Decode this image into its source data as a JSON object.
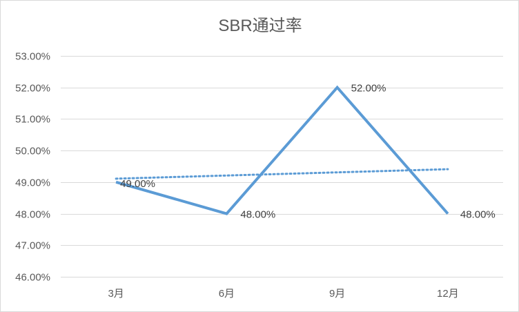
{
  "chart_data": {
    "type": "line",
    "title": "SBR通过率",
    "categories": [
      "3月",
      "6月",
      "9月",
      "12月"
    ],
    "series": [
      {
        "values": [
          0.49,
          0.48,
          0.52,
          0.48
        ],
        "data_labels": [
          "49.00%",
          "48.00%",
          "52.00%",
          "48.00%"
        ],
        "color": "#5b9bd5"
      }
    ],
    "trendline": {
      "type": "linear",
      "style": "dotted",
      "color": "#5b9bd5",
      "start": 0.4911,
      "end": 0.4941
    },
    "ylim": [
      0.46,
      0.53
    ],
    "y_ticks": [
      0.46,
      0.47,
      0.48,
      0.49,
      0.5,
      0.51,
      0.52,
      0.53
    ],
    "y_tick_labels": [
      "46.00%",
      "47.00%",
      "48.00%",
      "49.00%",
      "50.00%",
      "51.00%",
      "52.00%",
      "53.00%"
    ],
    "grid": true,
    "legend": "none",
    "xlabel": "",
    "ylabel": ""
  }
}
